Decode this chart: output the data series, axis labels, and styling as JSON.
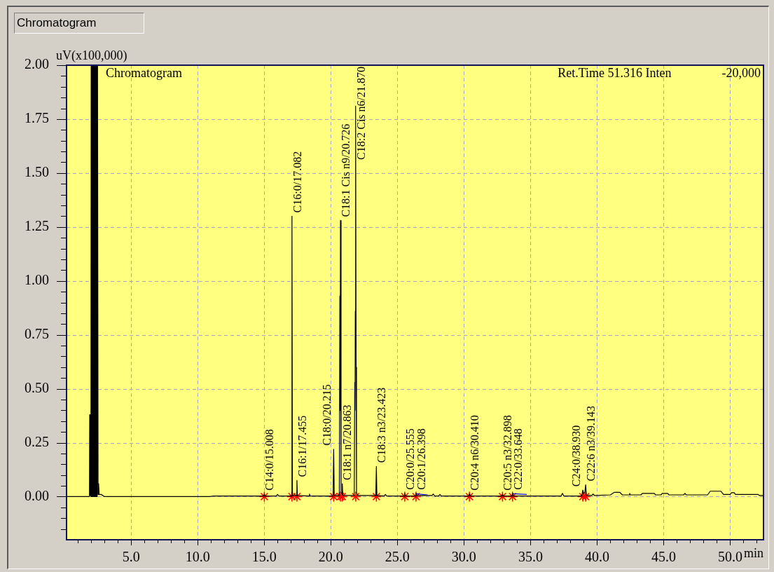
{
  "chart_data": {
    "type": "line",
    "title": "Chromatogram",
    "xlabel": "min",
    "ylabel": "uV(x100,000)",
    "xlim": [
      0.15,
      52.5
    ],
    "ylim": [
      -0.2,
      2.0
    ],
    "xticks": [
      {
        "value": 1,
        "label": null
      },
      {
        "value": 2,
        "label": null
      },
      {
        "value": 3,
        "label": null
      },
      {
        "value": 4,
        "label": null
      },
      {
        "value": 5,
        "label": "5.0"
      },
      {
        "value": 6,
        "label": null
      },
      {
        "value": 7,
        "label": null
      },
      {
        "value": 8,
        "label": null
      },
      {
        "value": 9,
        "label": null
      },
      {
        "value": 10,
        "label": "10.0"
      },
      {
        "value": 11,
        "label": null
      },
      {
        "value": 12,
        "label": null
      },
      {
        "value": 13,
        "label": null
      },
      {
        "value": 14,
        "label": null
      },
      {
        "value": 15,
        "label": "15.0"
      },
      {
        "value": 16,
        "label": null
      },
      {
        "value": 17,
        "label": null
      },
      {
        "value": 18,
        "label": null
      },
      {
        "value": 19,
        "label": null
      },
      {
        "value": 20,
        "label": "20.0"
      },
      {
        "value": 21,
        "label": null
      },
      {
        "value": 22,
        "label": null
      },
      {
        "value": 23,
        "label": null
      },
      {
        "value": 24,
        "label": null
      },
      {
        "value": 25,
        "label": "25.0"
      },
      {
        "value": 26,
        "label": null
      },
      {
        "value": 27,
        "label": null
      },
      {
        "value": 28,
        "label": null
      },
      {
        "value": 29,
        "label": null
      },
      {
        "value": 30,
        "label": "30.0"
      },
      {
        "value": 31,
        "label": null
      },
      {
        "value": 32,
        "label": null
      },
      {
        "value": 33,
        "label": null
      },
      {
        "value": 34,
        "label": null
      },
      {
        "value": 35,
        "label": "35.0"
      },
      {
        "value": 36,
        "label": null
      },
      {
        "value": 37,
        "label": null
      },
      {
        "value": 38,
        "label": null
      },
      {
        "value": 39,
        "label": null
      },
      {
        "value": 40,
        "label": "40.0"
      },
      {
        "value": 41,
        "label": null
      },
      {
        "value": 42,
        "label": null
      },
      {
        "value": 43,
        "label": null
      },
      {
        "value": 44,
        "label": null
      },
      {
        "value": 45,
        "label": "45.0"
      },
      {
        "value": 46,
        "label": null
      },
      {
        "value": 47,
        "label": null
      },
      {
        "value": 48,
        "label": null
      },
      {
        "value": 49,
        "label": null
      },
      {
        "value": 50,
        "label": "50.0"
      },
      {
        "value": 51,
        "label": null
      },
      {
        "value": 52,
        "label": null
      }
    ],
    "yticks": [
      {
        "value": -0.15,
        "label": null
      },
      {
        "value": -0.1,
        "label": null
      },
      {
        "value": -0.05,
        "label": null
      },
      {
        "value": 0,
        "label": "0.00"
      },
      {
        "value": 0.05,
        "label": null
      },
      {
        "value": 0.1,
        "label": null
      },
      {
        "value": 0.15,
        "label": null
      },
      {
        "value": 0.2,
        "label": null
      },
      {
        "value": 0.25,
        "label": "0.25"
      },
      {
        "value": 0.3,
        "label": null
      },
      {
        "value": 0.35,
        "label": null
      },
      {
        "value": 0.4,
        "label": null
      },
      {
        "value": 0.45,
        "label": null
      },
      {
        "value": 0.5,
        "label": "0.50"
      },
      {
        "value": 0.55,
        "label": null
      },
      {
        "value": 0.6,
        "label": null
      },
      {
        "value": 0.65,
        "label": null
      },
      {
        "value": 0.7,
        "label": null
      },
      {
        "value": 0.75,
        "label": "0.75"
      },
      {
        "value": 0.8,
        "label": null
      },
      {
        "value": 0.85,
        "label": null
      },
      {
        "value": 0.9,
        "label": null
      },
      {
        "value": 0.95,
        "label": null
      },
      {
        "value": 1,
        "label": "1.00"
      },
      {
        "value": 1.05,
        "label": null
      },
      {
        "value": 1.1,
        "label": null
      },
      {
        "value": 1.15,
        "label": null
      },
      {
        "value": 1.2,
        "label": null
      },
      {
        "value": 1.25,
        "label": "1.25"
      },
      {
        "value": 1.3,
        "label": null
      },
      {
        "value": 1.35,
        "label": null
      },
      {
        "value": 1.4,
        "label": null
      },
      {
        "value": 1.45,
        "label": null
      },
      {
        "value": 1.5,
        "label": "1.50"
      },
      {
        "value": 1.55,
        "label": null
      },
      {
        "value": 1.6,
        "label": null
      },
      {
        "value": 1.65,
        "label": null
      },
      {
        "value": 1.7,
        "label": null
      },
      {
        "value": 1.75,
        "label": "1.75"
      },
      {
        "value": 1.8,
        "label": null
      },
      {
        "value": 1.85,
        "label": null
      },
      {
        "value": 1.9,
        "label": null
      },
      {
        "value": 1.95,
        "label": null
      },
      {
        "value": 2,
        "label": "2.00"
      }
    ],
    "grid": true,
    "series": [
      {
        "type": "line",
        "color": "#000000",
        "x": [
          0.15,
          1.8,
          1.87,
          1.89,
          1.92,
          1.98,
          2.0,
          2.02,
          2.04,
          2.06,
          2.08,
          2.1,
          2.12,
          2.14,
          2.16,
          2.18,
          2.2,
          2.22,
          2.24,
          2.26,
          2.28,
          2.3,
          2.32,
          2.34,
          2.36,
          2.38,
          2.4,
          2.42,
          2.44,
          2.46,
          2.48,
          2.5,
          2.52,
          2.56,
          2.6,
          2.75,
          3.0,
          10.9,
          11.2,
          14.97,
          15.008,
          15.05,
          15.9,
          16.0,
          16.1,
          17.04,
          17.082,
          17.12,
          17.42,
          17.455,
          17.49,
          18.36,
          18.4,
          18.44,
          20.17,
          20.215,
          20.26,
          20.64,
          20.68,
          20.7,
          20.726,
          20.77,
          20.83,
          20.863,
          20.9,
          21.76,
          21.8,
          21.82,
          21.84,
          21.855,
          21.87,
          21.9,
          21.93,
          22.0,
          23.38,
          23.423,
          23.46,
          24.0,
          24.1,
          24.2,
          25.52,
          25.555,
          25.59,
          26.36,
          26.398,
          26.44,
          27.6,
          27.7,
          27.8,
          28.1,
          28.2,
          28.3,
          30.37,
          30.41,
          30.45,
          32.86,
          32.898,
          32.94,
          33.61,
          33.648,
          33.69,
          37.3,
          37.4,
          37.5,
          38.85,
          38.93,
          39.0,
          39.08,
          39.143,
          39.2,
          39.6,
          39.7,
          39.8,
          41.0,
          41.3,
          41.7,
          41.9,
          42.4,
          42.45,
          42.5,
          43.3,
          43.4,
          44.3,
          44.4,
          44.8,
          44.9,
          45.3,
          45.4,
          46.5,
          46.6,
          46.7,
          48.3,
          48.5,
          49.3,
          49.5,
          50.0,
          50.1,
          50.3,
          50.4,
          52.1,
          52.2,
          52.5
        ],
        "values": [
          0,
          0,
          0,
          0.38,
          0.01,
          0,
          2.0,
          0,
          2.0,
          0,
          2.0,
          0,
          2.0,
          0,
          2.0,
          0,
          2.0,
          0,
          2.0,
          0,
          2.0,
          0,
          2.0,
          0,
          2.0,
          0,
          2.0,
          0,
          2.0,
          0,
          2.0,
          2.0,
          0.01,
          0.06,
          0.01,
          0.01,
          0,
          0,
          0.003,
          0.003,
          0.012,
          0.003,
          0.003,
          0.01,
          0.003,
          0.003,
          1.3,
          0.005,
          0.005,
          0.075,
          0.005,
          0.003,
          0.012,
          0.003,
          0.003,
          0.22,
          0.005,
          0.005,
          0.93,
          0.4,
          1.28,
          0.02,
          0.01,
          0.06,
          0.005,
          0.005,
          0.53,
          0.4,
          0.86,
          0.7,
          1.81,
          0.6,
          0.02,
          0.005,
          0.005,
          0.14,
          0.005,
          0.003,
          0.01,
          0.003,
          0.003,
          0.015,
          0.003,
          0.003,
          0.015,
          0.005,
          0.005,
          0.012,
          0.003,
          0.003,
          0.01,
          0.003,
          0.003,
          0.012,
          0.003,
          0.003,
          0.012,
          0.003,
          0.003,
          0.015,
          0.003,
          0.003,
          0.015,
          0.003,
          0.003,
          0.03,
          0.012,
          0.02,
          0.055,
          0.005,
          0.005,
          0.012,
          0.005,
          0.008,
          0.02,
          0.02,
          0.008,
          0.008,
          0.015,
          0.008,
          0.008,
          0.015,
          0.015,
          0.008,
          0.008,
          0.015,
          0.015,
          0.008,
          0.008,
          0.015,
          0.008,
          0.008,
          0.025,
          0.025,
          0.01,
          0.01,
          0.018,
          0.018,
          0.01,
          0.01,
          0.005,
          0.005
        ]
      },
      {
        "type": "line",
        "color": "#0000ff",
        "x": [
          26.4,
          27.25,
          27.3,
          33.65,
          34.7
        ],
        "values": [
          0.013,
          0.008,
          null,
          0.013,
          0.01
        ]
      },
      {
        "type": "scatter",
        "color": "#ff0000",
        "marker": "cross",
        "x": [
          15.008,
          17.082,
          17.455,
          20.215,
          20.726,
          20.863,
          21.87,
          23.423,
          25.555,
          26.398,
          30.41,
          32.898,
          33.648,
          38.93,
          39.143
        ],
        "values": [
          0,
          0,
          0,
          0,
          0,
          0,
          0,
          0,
          0,
          0,
          0,
          0,
          0,
          0,
          0
        ]
      }
    ],
    "annotations": [
      "Chromatogram",
      "Ret.Time 51.316 Inten",
      "-20,000",
      {
        "text": "C14:0/15.008",
        "x": 15.008,
        "y": 0.012
      },
      {
        "text": "C16:0/17.082",
        "x": 17.082,
        "y": 1.3
      },
      {
        "text": "C16:1/17.455",
        "x": 17.455,
        "y": 0.075
      },
      {
        "text": "C18:0/20.215",
        "x": 20.215,
        "y": 0.22
      },
      {
        "text": "C18:1 Cis n9/20.726",
        "x": 20.726,
        "y": 1.28
      },
      {
        "text": "C18:1 n7/20.863",
        "x": 20.863,
        "y": 0.06
      },
      {
        "text": "C18:2 Cis n6/21.870",
        "x": 21.87,
        "y": 1.81
      },
      {
        "text": "C18:3 n3/23.423",
        "x": 23.423,
        "y": 0.14
      },
      {
        "text": "C20:0/25.555",
        "x": 25.555,
        "y": 0.015
      },
      {
        "text": "C20:1/26.398",
        "x": 26.398,
        "y": 0.015
      },
      {
        "text": "C20:4 n6/30.410",
        "x": 30.41,
        "y": 0.012
      },
      {
        "text": "C20:5 n3/32.898",
        "x": 32.898,
        "y": 0.012
      },
      {
        "text": "C22:0/33.648",
        "x": 33.648,
        "y": 0.015
      },
      {
        "text": "C24:0/38.930",
        "x": 38.93,
        "y": 0.03
      },
      {
        "text": "C22:6 n3/39.143",
        "x": 39.143,
        "y": 0.055
      }
    ]
  }
}
